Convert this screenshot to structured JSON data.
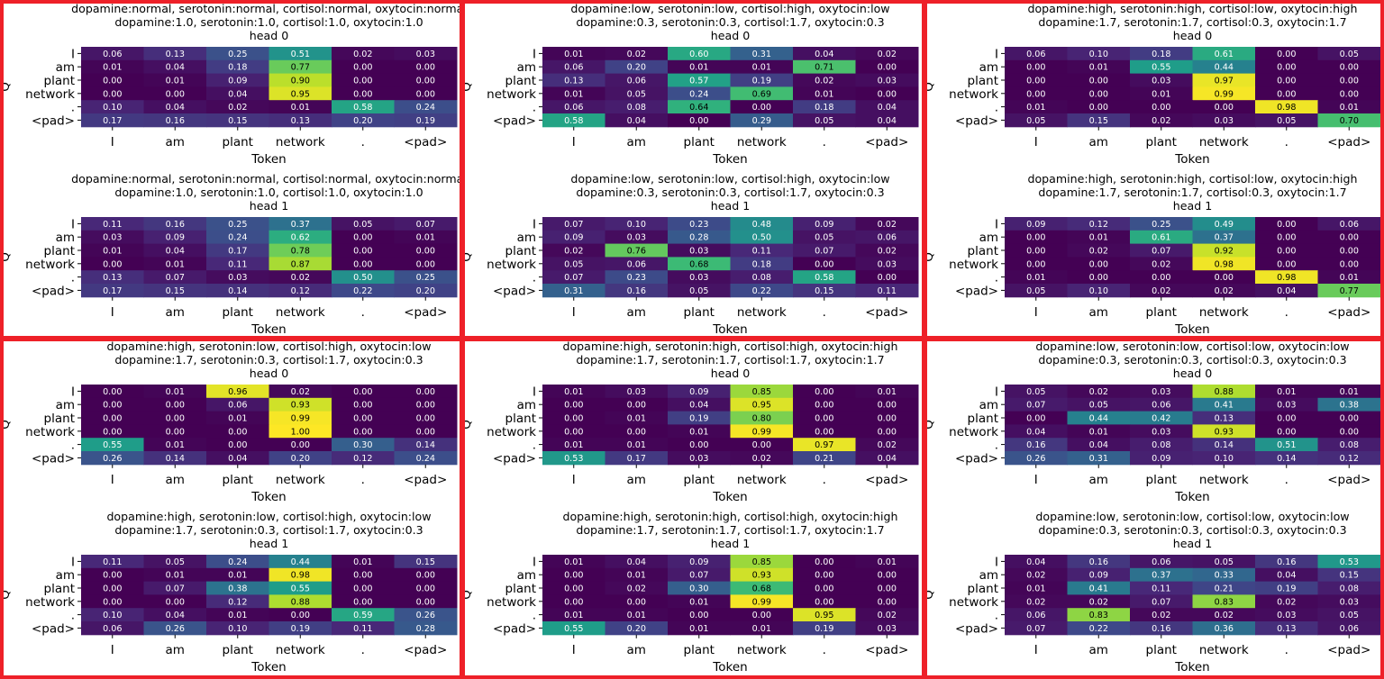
{
  "tokens": [
    "I",
    "am",
    "plant",
    "network",
    ".",
    "<pad>"
  ],
  "axes": {
    "xlabel": "Token",
    "ylabel": "Q"
  },
  "colors": {
    "panel_border": "#ee2028",
    "colormap": "viridis"
  },
  "chart_data": [
    {
      "type": "heatmap",
      "title": "dopamine:normal, serotonin:normal, cortisol:normal, oxytocin:normal",
      "subtitle": "dopamine:1.0, serotonin:1.0, cortisol:1.0, oxytocin:1.0",
      "heads": [
        {
          "label": "head 0",
          "values": [
            [
              0.06,
              0.13,
              0.25,
              0.51,
              0.02,
              0.03
            ],
            [
              0.01,
              0.04,
              0.18,
              0.77,
              0.0,
              0.0
            ],
            [
              0.0,
              0.01,
              0.09,
              0.9,
              0.0,
              0.0
            ],
            [
              0.0,
              0.0,
              0.04,
              0.95,
              0.0,
              0.0
            ],
            [
              0.1,
              0.04,
              0.02,
              0.01,
              0.58,
              0.24
            ],
            [
              0.17,
              0.16,
              0.15,
              0.13,
              0.2,
              0.19
            ]
          ]
        },
        {
          "label": "head 1",
          "values": [
            [
              0.11,
              0.16,
              0.25,
              0.37,
              0.05,
              0.07
            ],
            [
              0.03,
              0.09,
              0.24,
              0.62,
              0.0,
              0.01
            ],
            [
              0.01,
              0.04,
              0.17,
              0.78,
              0.0,
              0.0
            ],
            [
              0.0,
              0.01,
              0.11,
              0.87,
              0.0,
              0.0
            ],
            [
              0.13,
              0.07,
              0.03,
              0.02,
              0.5,
              0.25
            ],
            [
              0.17,
              0.15,
              0.14,
              0.12,
              0.22,
              0.2
            ]
          ]
        }
      ]
    },
    {
      "type": "heatmap",
      "title": "dopamine:low, serotonin:low, cortisol:high, oxytocin:low",
      "subtitle": "dopamine:0.3, serotonin:0.3, cortisol:1.7, oxytocin:0.3",
      "heads": [
        {
          "label": "head 0",
          "values": [
            [
              0.01,
              0.02,
              0.6,
              0.31,
              0.04,
              0.02
            ],
            [
              0.06,
              0.2,
              0.01,
              0.01,
              0.71,
              0.0
            ],
            [
              0.13,
              0.06,
              0.57,
              0.19,
              0.02,
              0.03
            ],
            [
              0.01,
              0.05,
              0.24,
              0.69,
              0.01,
              0.0
            ],
            [
              0.06,
              0.08,
              0.64,
              0.0,
              0.18,
              0.04
            ],
            [
              0.58,
              0.04,
              0.0,
              0.29,
              0.05,
              0.04
            ]
          ]
        },
        {
          "label": "head 1",
          "values": [
            [
              0.07,
              0.1,
              0.23,
              0.48,
              0.09,
              0.02
            ],
            [
              0.09,
              0.03,
              0.28,
              0.5,
              0.05,
              0.06
            ],
            [
              0.02,
              0.76,
              0.03,
              0.11,
              0.07,
              0.02
            ],
            [
              0.05,
              0.06,
              0.68,
              0.18,
              0.0,
              0.03
            ],
            [
              0.07,
              0.23,
              0.03,
              0.08,
              0.58,
              0.0
            ],
            [
              0.31,
              0.16,
              0.05,
              0.22,
              0.15,
              0.11
            ]
          ]
        }
      ]
    },
    {
      "type": "heatmap",
      "title": "dopamine:high, serotonin:high, cortisol:low, oxytocin:high",
      "subtitle": "dopamine:1.7, serotonin:1.7, cortisol:0.3, oxytocin:1.7",
      "heads": [
        {
          "label": "head 0",
          "values": [
            [
              0.06,
              0.1,
              0.18,
              0.61,
              0.0,
              0.05
            ],
            [
              0.0,
              0.01,
              0.55,
              0.44,
              0.0,
              0.0
            ],
            [
              0.0,
              0.0,
              0.03,
              0.97,
              0.0,
              0.0
            ],
            [
              0.0,
              0.0,
              0.01,
              0.99,
              0.0,
              0.0
            ],
            [
              0.01,
              0.0,
              0.0,
              0.0,
              0.98,
              0.01
            ],
            [
              0.05,
              0.15,
              0.02,
              0.03,
              0.05,
              0.7
            ]
          ]
        },
        {
          "label": "head 1",
          "values": [
            [
              0.09,
              0.12,
              0.25,
              0.49,
              0.0,
              0.06
            ],
            [
              0.0,
              0.01,
              0.61,
              0.37,
              0.0,
              0.0
            ],
            [
              0.0,
              0.02,
              0.07,
              0.92,
              0.0,
              0.0
            ],
            [
              0.0,
              0.0,
              0.02,
              0.98,
              0.0,
              0.0
            ],
            [
              0.01,
              0.0,
              0.0,
              0.0,
              0.98,
              0.01
            ],
            [
              0.05,
              0.1,
              0.02,
              0.02,
              0.04,
              0.77
            ]
          ]
        }
      ]
    },
    {
      "type": "heatmap",
      "title": "dopamine:high, serotonin:low, cortisol:high, oxytocin:low",
      "subtitle": "dopamine:1.7, serotonin:0.3, cortisol:1.7, oxytocin:0.3",
      "heads": [
        {
          "label": "head 0",
          "values": [
            [
              0.0,
              0.01,
              0.96,
              0.02,
              0.0,
              0.0
            ],
            [
              0.0,
              0.0,
              0.06,
              0.93,
              0.0,
              0.0
            ],
            [
              0.0,
              0.0,
              0.01,
              0.99,
              0.0,
              0.0
            ],
            [
              0.0,
              0.0,
              0.0,
              1.0,
              0.0,
              0.0
            ],
            [
              0.55,
              0.01,
              0.0,
              0.0,
              0.3,
              0.14
            ],
            [
              0.26,
              0.14,
              0.04,
              0.2,
              0.12,
              0.24
            ]
          ]
        },
        {
          "label": "head 1",
          "values": [
            [
              0.11,
              0.05,
              0.24,
              0.44,
              0.01,
              0.15
            ],
            [
              0.0,
              0.01,
              0.01,
              0.98,
              0.0,
              0.0
            ],
            [
              0.0,
              0.07,
              0.38,
              0.55,
              0.0,
              0.0
            ],
            [
              0.0,
              0.0,
              0.12,
              0.88,
              0.0,
              0.0
            ],
            [
              0.1,
              0.04,
              0.01,
              0.0,
              0.59,
              0.26
            ],
            [
              0.06,
              0.26,
              0.1,
              0.19,
              0.11,
              0.28
            ]
          ]
        }
      ]
    },
    {
      "type": "heatmap",
      "title": "dopamine:high, serotonin:high, cortisol:high, oxytocin:high",
      "subtitle": "dopamine:1.7, serotonin:1.7, cortisol:1.7, oxytocin:1.7",
      "heads": [
        {
          "label": "head 0",
          "values": [
            [
              0.01,
              0.03,
              0.09,
              0.85,
              0.0,
              0.01
            ],
            [
              0.0,
              0.0,
              0.04,
              0.95,
              0.0,
              0.0
            ],
            [
              0.0,
              0.01,
              0.19,
              0.8,
              0.0,
              0.0
            ],
            [
              0.0,
              0.0,
              0.01,
              0.99,
              0.0,
              0.0
            ],
            [
              0.01,
              0.01,
              0.0,
              0.0,
              0.97,
              0.02
            ],
            [
              0.53,
              0.17,
              0.03,
              0.02,
              0.21,
              0.04
            ]
          ]
        },
        {
          "label": "head 1",
          "values": [
            [
              0.01,
              0.04,
              0.09,
              0.85,
              0.0,
              0.01
            ],
            [
              0.0,
              0.01,
              0.07,
              0.93,
              0.0,
              0.0
            ],
            [
              0.0,
              0.02,
              0.3,
              0.68,
              0.0,
              0.0
            ],
            [
              0.0,
              0.0,
              0.01,
              0.99,
              0.0,
              0.0
            ],
            [
              0.01,
              0.01,
              0.0,
              0.0,
              0.95,
              0.02
            ],
            [
              0.55,
              0.2,
              0.01,
              0.01,
              0.19,
              0.03
            ]
          ]
        }
      ]
    },
    {
      "type": "heatmap",
      "title": "dopamine:low, serotonin:low, cortisol:low, oxytocin:low",
      "subtitle": "dopamine:0.3, serotonin:0.3, cortisol:0.3, oxytocin:0.3",
      "heads": [
        {
          "label": "head 0",
          "values": [
            [
              0.05,
              0.02,
              0.03,
              0.88,
              0.01,
              0.01
            ],
            [
              0.07,
              0.05,
              0.06,
              0.41,
              0.03,
              0.38
            ],
            [
              0.0,
              0.44,
              0.42,
              0.13,
              0.0,
              0.0
            ],
            [
              0.04,
              0.01,
              0.03,
              0.93,
              0.0,
              0.0
            ],
            [
              0.16,
              0.04,
              0.08,
              0.14,
              0.51,
              0.08
            ],
            [
              0.26,
              0.31,
              0.09,
              0.1,
              0.14,
              0.12
            ]
          ]
        },
        {
          "label": "head 1",
          "values": [
            [
              0.04,
              0.16,
              0.06,
              0.05,
              0.16,
              0.53
            ],
            [
              0.02,
              0.09,
              0.37,
              0.33,
              0.04,
              0.15
            ],
            [
              0.01,
              0.41,
              0.11,
              0.21,
              0.19,
              0.08
            ],
            [
              0.02,
              0.02,
              0.07,
              0.83,
              0.02,
              0.03
            ],
            [
              0.06,
              0.83,
              0.02,
              0.02,
              0.03,
              0.05
            ],
            [
              0.07,
              0.22,
              0.16,
              0.36,
              0.13,
              0.06
            ]
          ]
        }
      ]
    }
  ]
}
